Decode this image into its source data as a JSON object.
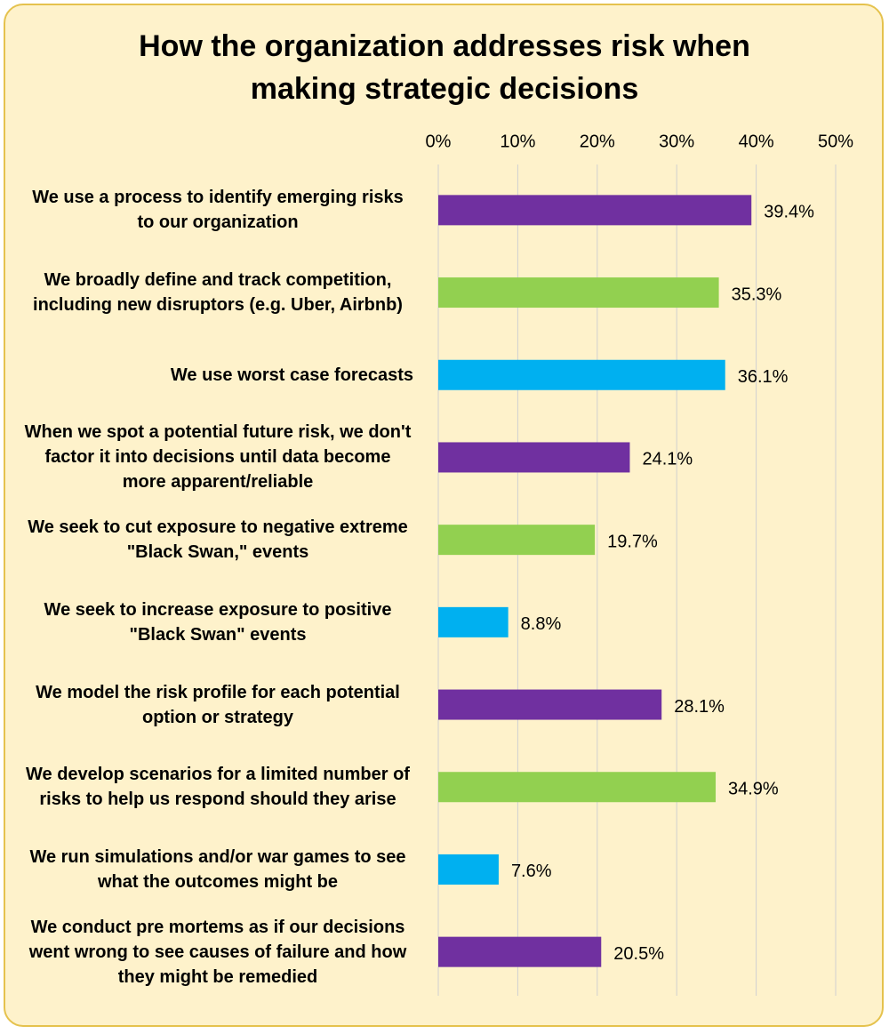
{
  "chart_data": {
    "type": "bar",
    "orientation": "horizontal",
    "title": "How the organization addresses risk when making strategic decisions",
    "categories": [
      "We use a process to identify emerging risks to our organization",
      "We broadly define and track competition, including  new disruptors (e.g. Uber, Airbnb)",
      "We use worst case forecasts",
      "When we spot a potential future risk, we don't factor it into decisions until data become more apparent/reliable",
      "We seek to cut exposure to negative extreme \"Black Swan,\" events",
      "We seek to increase exposure to positive \"Black Swan\" events",
      "We model the risk profile for each potential option or strategy",
      "We develop scenarios for a limited number of risks to help us respond should they arise",
      "We run simulations and/or war games to see what the outcomes might be",
      "We conduct pre mortems as if our decisions went wrong to see causes of failure and how they might be remedied"
    ],
    "values": [
      39.4,
      35.3,
      36.1,
      24.1,
      19.7,
      8.8,
      28.1,
      34.9,
      7.6,
      20.5
    ],
    "value_labels": [
      "39.4%",
      "35.3%",
      "36.1%",
      "24.1%",
      "19.7%",
      "8.8%",
      "28.1%",
      "34.9%",
      "7.6%",
      "20.5%"
    ],
    "colors": [
      "#7030a0",
      "#92d050",
      "#00b0f0",
      "#7030a0",
      "#92d050",
      "#00b0f0",
      "#7030a0",
      "#92d050",
      "#00b0f0",
      "#7030a0"
    ],
    "xlim": [
      0,
      50
    ],
    "xticks": [
      {
        "value": 0,
        "label": "0%"
      },
      {
        "value": 10,
        "label": "10%"
      },
      {
        "value": 20,
        "label": "20%"
      },
      {
        "value": 30,
        "label": "30%"
      },
      {
        "value": 40,
        "label": "40%"
      },
      {
        "value": 50,
        "label": "50%"
      }
    ],
    "grid": true
  }
}
